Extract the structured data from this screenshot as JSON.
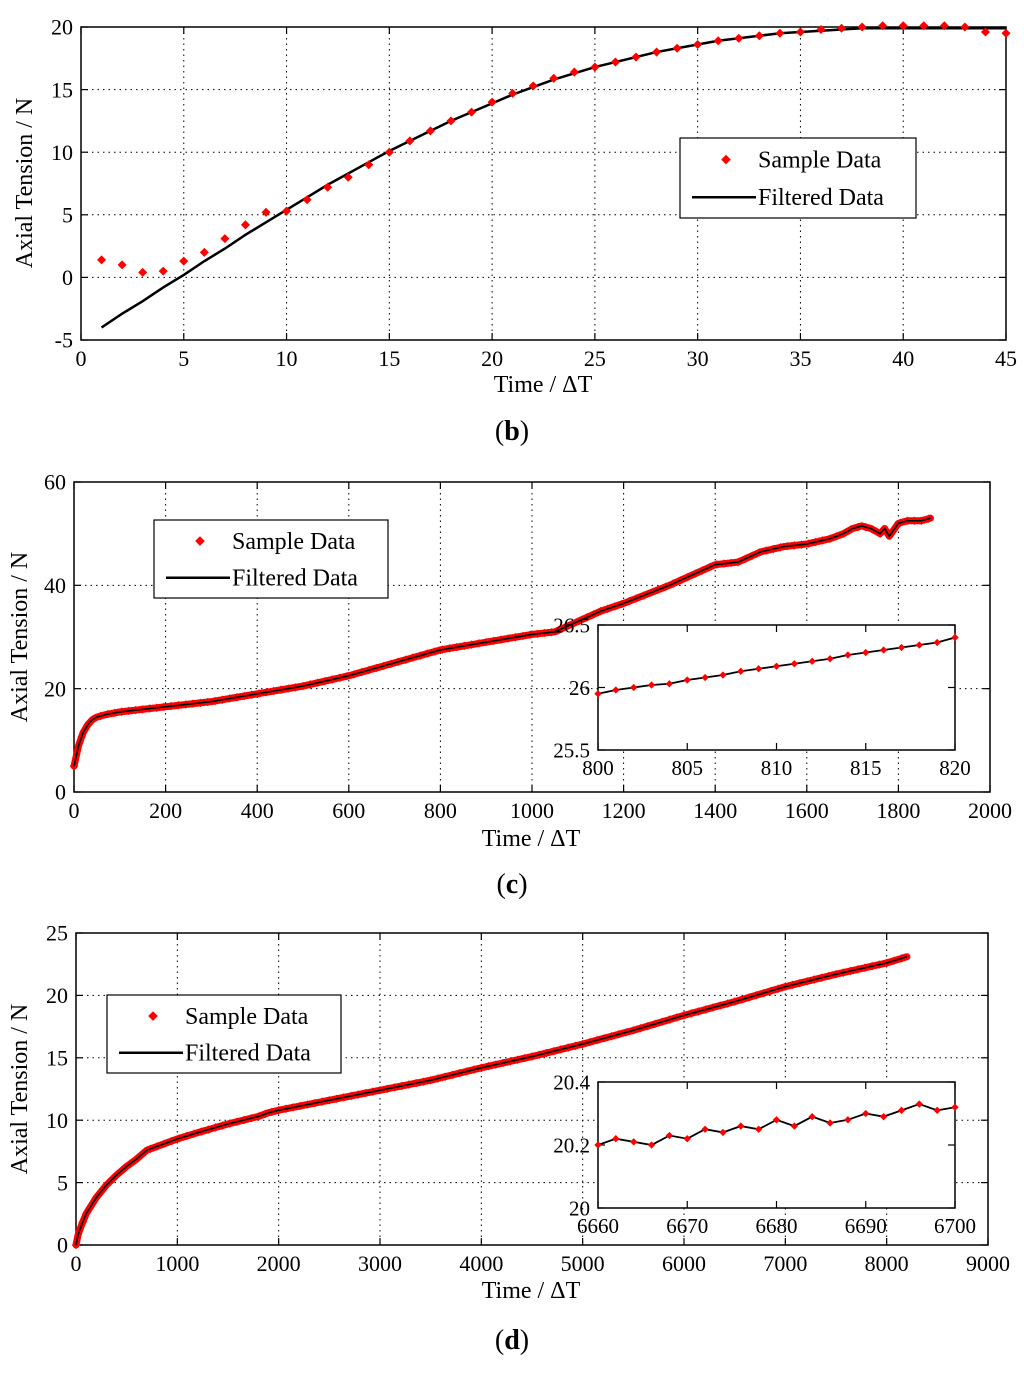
{
  "colors": {
    "sample": "#ff0000",
    "filtered": "#000000",
    "grid": "#000000"
  },
  "chart_data": [
    {
      "id": "b",
      "type": "line",
      "panel_label": "b",
      "xlabel": "Time / ΔT",
      "ylabel": "Axial Tension / N",
      "xlim": [
        0,
        45
      ],
      "ylim": [
        -5,
        20
      ],
      "xticks": [
        "0",
        "5",
        "10",
        "15",
        "20",
        "25",
        "30",
        "35",
        "40",
        "45"
      ],
      "yticks": [
        "-5",
        "0",
        "5",
        "10",
        "15",
        "20"
      ],
      "legend": {
        "position": "right-middle",
        "entries": [
          "Sample Data",
          "Filtered Data"
        ]
      },
      "series": [
        {
          "name": "Sample Data",
          "kind": "markers",
          "x": [
            1,
            2,
            3,
            4,
            5,
            6,
            7,
            8,
            9,
            10,
            11,
            12,
            13,
            14,
            15,
            16,
            17,
            18,
            19,
            20,
            21,
            22,
            23,
            24,
            25,
            26,
            27,
            28,
            29,
            30,
            31,
            32,
            33,
            34,
            35,
            36,
            37,
            38,
            39,
            40,
            41,
            42,
            43,
            44,
            45
          ],
          "y": [
            1.4,
            1.0,
            0.4,
            0.5,
            1.3,
            2.0,
            3.1,
            4.2,
            5.2,
            5.3,
            6.2,
            7.2,
            8.0,
            9.0,
            10.0,
            10.9,
            11.7,
            12.5,
            13.2,
            14.0,
            14.7,
            15.3,
            15.9,
            16.4,
            16.8,
            17.2,
            17.6,
            18.0,
            18.3,
            18.6,
            18.9,
            19.1,
            19.3,
            19.5,
            19.6,
            19.8,
            19.9,
            20.0,
            20.1,
            20.1,
            20.1,
            20.1,
            20.0,
            19.6,
            19.5
          ]
        },
        {
          "name": "Filtered Data",
          "kind": "line",
          "x": [
            1,
            2,
            3,
            4,
            5,
            6,
            7,
            8,
            9,
            10,
            11,
            12,
            13,
            14,
            15,
            16,
            17,
            18,
            19,
            20,
            21,
            22,
            23,
            24,
            25,
            26,
            27,
            28,
            29,
            30,
            31,
            32,
            33,
            34,
            35,
            36,
            37,
            38,
            39,
            40,
            41,
            42,
            43,
            44,
            45
          ],
          "y": [
            -4.0,
            -2.9,
            -1.9,
            -0.8,
            0.2,
            1.3,
            2.3,
            3.4,
            4.4,
            5.4,
            6.4,
            7.4,
            8.3,
            9.2,
            10.1,
            10.9,
            11.7,
            12.5,
            13.2,
            13.9,
            14.6,
            15.2,
            15.8,
            16.3,
            16.8,
            17.2,
            17.6,
            18.0,
            18.3,
            18.6,
            18.9,
            19.1,
            19.3,
            19.5,
            19.6,
            19.7,
            19.8,
            19.9,
            19.9,
            19.9,
            19.9,
            19.9,
            19.9,
            19.9,
            19.9
          ]
        }
      ]
    },
    {
      "id": "c",
      "type": "line",
      "panel_label": "c",
      "xlabel": "Time / ΔT",
      "ylabel": "Axial Tension / N",
      "xlim": [
        0,
        2000
      ],
      "ylim": [
        0,
        60
      ],
      "xticks": [
        "0",
        "200",
        "400",
        "600",
        "800",
        "1000",
        "1200",
        "1400",
        "1600",
        "1800",
        "2000"
      ],
      "yticks": [
        "0",
        "20",
        "40",
        "60"
      ],
      "legend": {
        "position": "top-left",
        "entries": [
          "Sample Data",
          "Filtered Data"
        ]
      },
      "series": [
        {
          "name": "Filtered Data",
          "x": [
            0,
            5,
            10,
            20,
            30,
            40,
            50,
            70,
            100,
            150,
            200,
            300,
            400,
            500,
            600,
            700,
            800,
            900,
            1000,
            1050,
            1100,
            1150,
            1200,
            1300,
            1400,
            1450,
            1500,
            1550,
            1600,
            1650,
            1680,
            1700,
            1720,
            1740,
            1760,
            1770,
            1780,
            1800,
            1820,
            1850,
            1870
          ],
          "y": [
            5,
            7,
            9,
            11.5,
            13,
            14,
            14.5,
            15,
            15.5,
            16,
            16.5,
            17.5,
            19,
            20.5,
            22.5,
            25,
            27.5,
            29,
            30.5,
            31,
            33,
            35,
            36.5,
            40,
            44,
            44.5,
            46.5,
            47.5,
            48,
            49,
            50,
            51,
            51.5,
            51,
            50,
            51,
            49.5,
            52,
            52.5,
            52.5,
            53
          ]
        }
      ],
      "inset": {
        "xlim": [
          800,
          820
        ],
        "ylim": [
          25.5,
          26.5
        ],
        "xticks": [
          "800",
          "805",
          "810",
          "815",
          "820"
        ],
        "yticks": [
          "25.5",
          "26",
          "26.5"
        ],
        "series": [
          {
            "name": "Sample Data",
            "x": [
              800,
              801,
              802,
              803,
              804,
              805,
              806,
              807,
              808,
              809,
              810,
              811,
              812,
              813,
              814,
              815,
              816,
              817,
              818,
              819,
              820
            ],
            "y": [
              25.95,
              25.98,
              26.0,
              26.02,
              26.03,
              26.06,
              26.08,
              26.1,
              26.13,
              26.15,
              26.17,
              26.19,
              26.21,
              26.23,
              26.26,
              26.28,
              26.3,
              26.32,
              26.34,
              26.36,
              26.4
            ]
          },
          {
            "name": "Filtered Data",
            "x": [
              800,
              804,
              808,
              812,
              816,
              820
            ],
            "y": [
              25.95,
              26.04,
              26.12,
              26.2,
              26.29,
              26.38
            ]
          }
        ]
      }
    },
    {
      "id": "d",
      "type": "line",
      "panel_label": "d",
      "xlabel": "Time / ΔT",
      "ylabel": "Axial Tension / N",
      "xlim": [
        0,
        9000
      ],
      "ylim": [
        0,
        25
      ],
      "xticks": [
        "0",
        "1000",
        "2000",
        "3000",
        "4000",
        "5000",
        "6000",
        "7000",
        "8000",
        "9000"
      ],
      "yticks": [
        "0",
        "5",
        "10",
        "15",
        "20",
        "25"
      ],
      "legend": {
        "position": "top-left",
        "entries": [
          "Sample Data",
          "Filtered Data"
        ]
      },
      "series": [
        {
          "name": "Filtered Data",
          "x": [
            0,
            20,
            50,
            100,
            200,
            300,
            400,
            500,
            600,
            700,
            800,
            1000,
            1200,
            1500,
            1800,
            1900,
            2000,
            2500,
            3000,
            3500,
            4000,
            4500,
            5000,
            5500,
            6000,
            6500,
            7000,
            7500,
            8000,
            8200
          ],
          "y": [
            0,
            0.8,
            1.5,
            2.5,
            3.8,
            4.8,
            5.6,
            6.3,
            6.9,
            7.6,
            7.9,
            8.5,
            9.0,
            9.7,
            10.3,
            10.6,
            10.8,
            11.6,
            12.4,
            13.2,
            14.2,
            15.1,
            16.1,
            17.2,
            18.4,
            19.5,
            20.7,
            21.7,
            22.6,
            23.1
          ]
        }
      ],
      "inset": {
        "xlim": [
          6660,
          6700
        ],
        "ylim": [
          20,
          20.4
        ],
        "xticks": [
          "6660",
          "6670",
          "6680",
          "6690",
          "6700"
        ],
        "yticks": [
          "20",
          "20.2",
          "20.4"
        ],
        "series": [
          {
            "name": "Sample Data",
            "x": [
              6660,
              6662,
              6664,
              6666,
              6668,
              6670,
              6672,
              6674,
              6676,
              6678,
              6680,
              6682,
              6684,
              6686,
              6688,
              6690,
              6692,
              6694,
              6696,
              6698,
              6700
            ],
            "y": [
              20.2,
              20.22,
              20.21,
              20.2,
              20.23,
              20.22,
              20.25,
              20.24,
              20.26,
              20.25,
              20.28,
              20.26,
              20.29,
              20.27,
              20.28,
              20.3,
              20.29,
              20.31,
              20.33,
              20.31,
              20.32
            ]
          },
          {
            "name": "Filtered Data",
            "x": [
              6660,
              6665,
              6670,
              6675,
              6680,
              6685,
              6690,
              6695,
              6700
            ],
            "y": [
              20.2,
              20.21,
              20.23,
              20.25,
              20.26,
              20.28,
              20.29,
              20.31,
              20.32
            ]
          }
        ]
      }
    }
  ]
}
